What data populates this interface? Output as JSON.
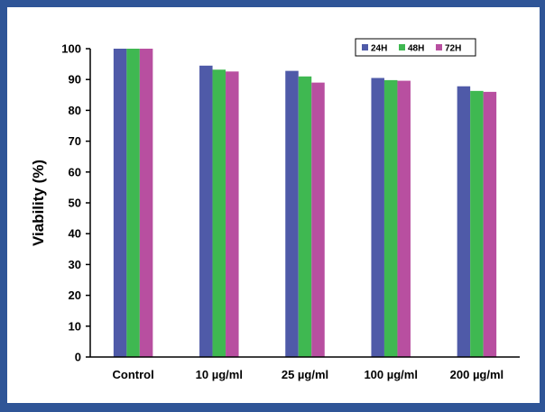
{
  "chart_data": {
    "type": "bar",
    "title": "",
    "xlabel": "",
    "ylabel": "Viability (%)",
    "ylim": [
      0,
      100
    ],
    "yticks": [
      0,
      10,
      20,
      30,
      40,
      50,
      60,
      70,
      80,
      90,
      100
    ],
    "grid": false,
    "legend_position": "top-right",
    "categories": [
      "Control",
      "10 µg/ml",
      "25 µg/ml",
      "100 µg/ml",
      "200 µg/ml"
    ],
    "series": [
      {
        "name": "24H",
        "color": "#4f5aa8",
        "values": [
          100,
          94.5,
          92.8,
          90.5,
          87.8
        ]
      },
      {
        "name": "48H",
        "color": "#3fb851",
        "values": [
          100,
          93.2,
          91.0,
          89.8,
          86.3
        ]
      },
      {
        "name": "72H",
        "color": "#b84fa0",
        "values": [
          100,
          92.6,
          89.0,
          89.6,
          86.0
        ]
      }
    ]
  }
}
